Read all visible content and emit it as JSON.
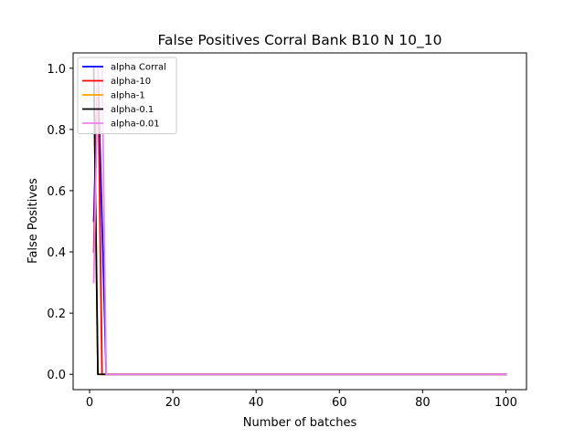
{
  "chart_data": {
    "type": "line",
    "title": "False Positives Corral Bank B10 N 10_10",
    "xlabel": "Number of batches",
    "ylabel": "False Positives",
    "xlim": [
      -3.95,
      104.95
    ],
    "ylim": [
      -0.05,
      1.05
    ],
    "xticks": [
      0,
      20,
      40,
      60,
      80,
      100
    ],
    "yticks": [
      0.0,
      0.2,
      0.4,
      0.6,
      0.8,
      1.0
    ],
    "xtick_labels": [
      "0",
      "20",
      "40",
      "60",
      "80",
      "100"
    ],
    "ytick_labels": [
      "0.0",
      "0.2",
      "0.4",
      "0.6",
      "0.8",
      "1.0"
    ],
    "grid": false,
    "legend_position": "top-left",
    "series": [
      {
        "name": "alpha Corral",
        "color": "#0000ff",
        "x": [
          1,
          2,
          3,
          4,
          5,
          100
        ],
        "y": [
          0.5,
          1.0,
          0.5,
          0.0,
          0.0,
          0.0
        ]
      },
      {
        "name": "alpha-10",
        "color": "#ff0000",
        "x": [
          1,
          2,
          3,
          4,
          100
        ],
        "y": [
          0.4,
          1.0,
          0.0,
          0.0,
          0.0
        ]
      },
      {
        "name": "alpha-1",
        "color": "#ffa500",
        "x": [
          1,
          2,
          3,
          100
        ],
        "y": [
          1.0,
          0.0,
          0.0,
          0.0
        ]
      },
      {
        "name": "alpha-0.1",
        "color": "#000000",
        "x": [
          1,
          2,
          3,
          100
        ],
        "y": [
          1.0,
          0.0,
          0.0,
          0.0
        ]
      },
      {
        "name": "alpha-0.01",
        "color": "#ee82ee",
        "x": [
          1,
          2,
          3,
          4,
          100
        ],
        "y": [
          0.3,
          1.0,
          1.0,
          0.0,
          0.0
        ]
      }
    ]
  }
}
